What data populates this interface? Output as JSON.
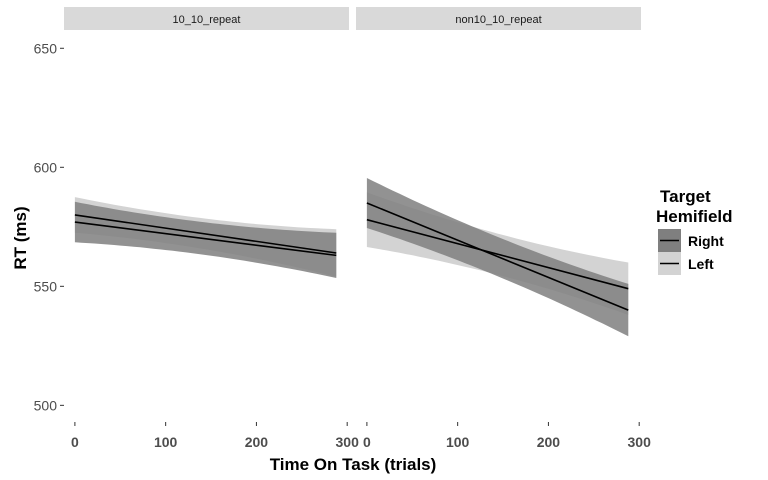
{
  "chart_data": {
    "type": "line",
    "xlabel": "Time On Task (trials)",
    "ylabel": "RT (ms)",
    "xlim": [
      -12,
      302
    ],
    "ylim": [
      493,
      656
    ],
    "x_ticks": [
      0,
      100,
      200,
      300
    ],
    "y_ticks": [
      500,
      550,
      600,
      650
    ],
    "grid": false,
    "legend": {
      "title_lines": [
        "Target",
        "Hemifield"
      ],
      "position": "right",
      "entries": [
        {
          "label": "Right",
          "fill": "#7f7f7f"
        },
        {
          "label": "Left",
          "fill": "#d3d3d3"
        }
      ]
    },
    "panels": [
      {
        "strip": "10_10_repeat",
        "series": [
          {
            "name": "Right",
            "x": [
              0,
              288
            ],
            "y": [
              577,
              563
            ],
            "ci_lower": [
              569,
              554
            ],
            "ci_upper": [
              586,
              573
            ]
          },
          {
            "name": "Left",
            "x": [
              0,
              288
            ],
            "y": [
              580,
              564
            ],
            "ci_lower": [
              573,
              554
            ],
            "ci_upper": [
              588,
              574
            ]
          }
        ]
      },
      {
        "strip": "non10_10_repeat",
        "series": [
          {
            "name": "Right",
            "x": [
              0,
              288
            ],
            "y": [
              585,
              540
            ],
            "ci_lower": [
              575,
              529
            ],
            "ci_upper": [
              596,
              551
            ]
          },
          {
            "name": "Left",
            "x": [
              0,
              288
            ],
            "y": [
              578,
              549
            ],
            "ci_lower": [
              567,
              538
            ],
            "ci_upper": [
              590,
              560
            ]
          }
        ]
      }
    ]
  },
  "colors": {
    "strip_bg": "#d9d9d9",
    "ribbon_right": "#7f7f7f",
    "ribbon_left": "#d3d3d3",
    "line": "#000000",
    "axis_text": "#4d4d4d",
    "tick": "#333333"
  }
}
